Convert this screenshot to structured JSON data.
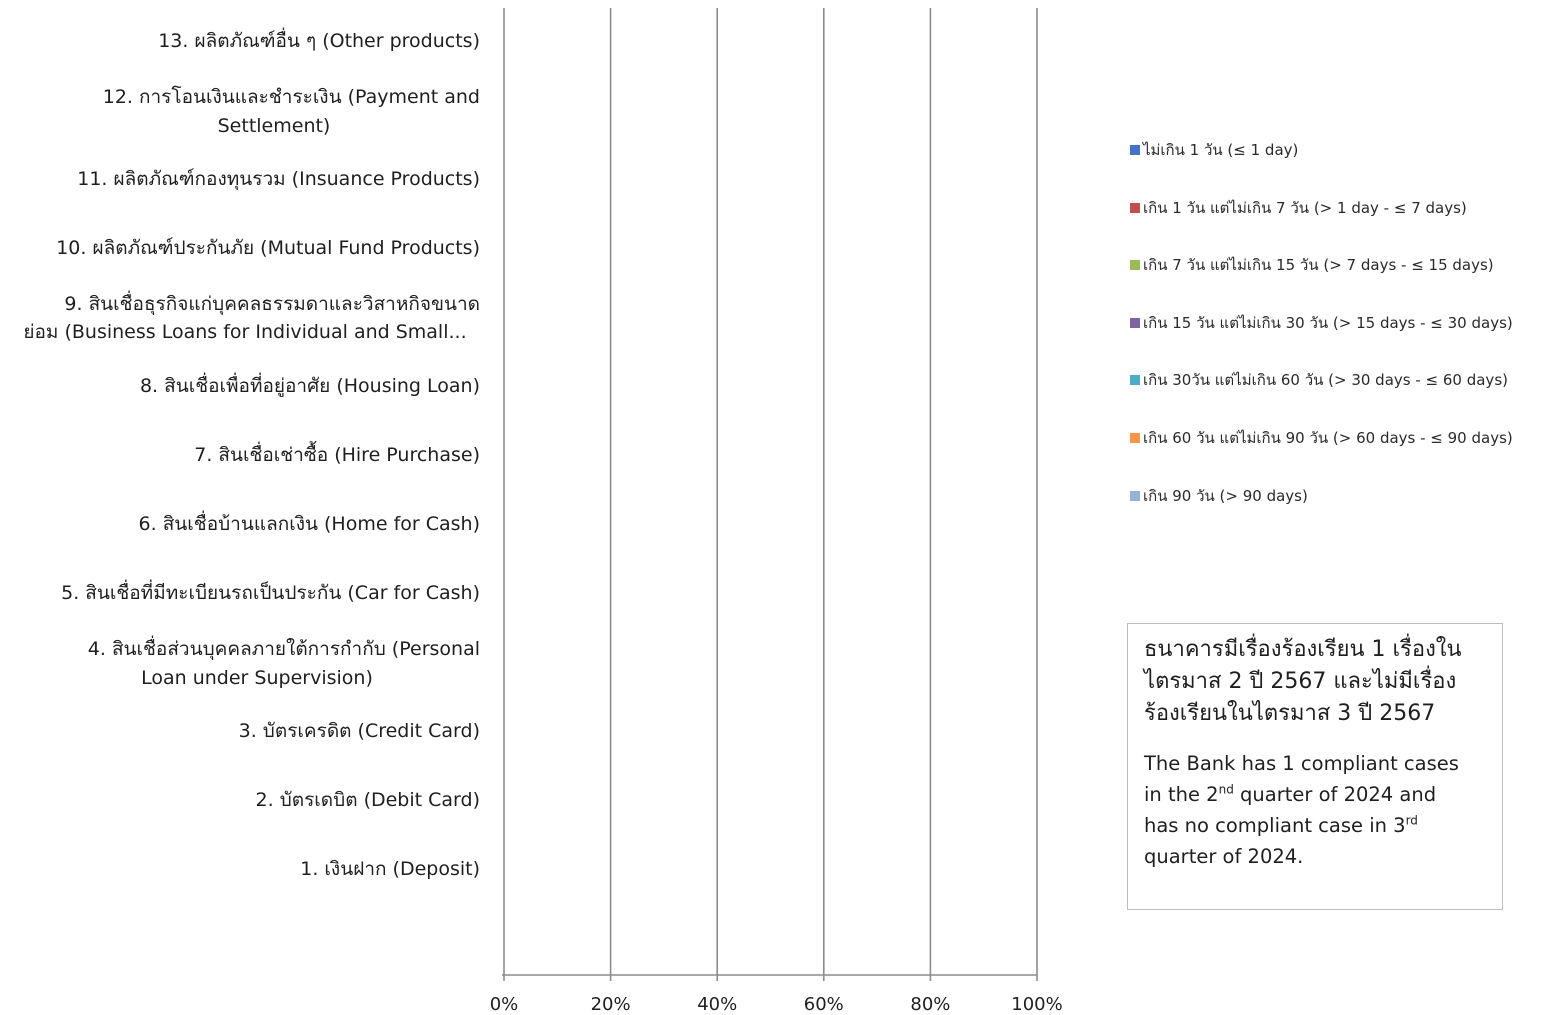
{
  "chart_data": {
    "type": "bar",
    "orientation": "horizontal",
    "stacked": true,
    "percent": true,
    "categories": [
      [
        "13. ผลิตภัณฑ์อื่น ๆ (Other products)"
      ],
      [
        "12. การโอนเงินและชำระเงิน (Payment and",
        "Settlement)"
      ],
      [
        "11. ผลิตภัณฑ์กองทุนรวม (Insuance Products)"
      ],
      [
        "10. ผลิตภัณฑ์ประกันภัย (Mutual Fund Products)"
      ],
      [
        "9. สินเชื่อธุรกิจแก่บุคคลธรรมดาและวิสาหกิจขนาด",
        "ย่อม (Business Loans for Individual and Small..."
      ],
      [
        "8. สินเชื่อเพื่อที่อยู่อาศัย (Housing Loan)"
      ],
      [
        "7. สินเชื่อเช่าซื้อ (Hire Purchase)"
      ],
      [
        "6. สินเชื่อบ้านแลกเงิน (Home for Cash)"
      ],
      [
        "5. สินเชื่อที่มีทะเบียนรถเป็นประกัน (Car for Cash)"
      ],
      [
        "4. สินเชื่อส่วนบุคคลภายใต้การกำกับ (Personal",
        "Loan under Supervision)"
      ],
      [
        "3. บัตรเครดิต (Credit Card)"
      ],
      [
        "2. บัตรเดบิต (Debit Card)"
      ],
      [
        "1. เงินฝาก (Deposit)"
      ]
    ],
    "series": [
      {
        "name": "ไม่เกิน 1 วัน (≤ 1 day)",
        "color": "#4472c4",
        "values": [
          0,
          0,
          0,
          0,
          0,
          0,
          0,
          0,
          0,
          0,
          0,
          0,
          0
        ]
      },
      {
        "name": "เกิน 1 วัน แต่ไม่เกิน 7 วัน (> 1 day - ≤ 7 days)",
        "color": "#c0504d",
        "values": [
          0,
          0,
          0,
          0,
          0,
          0,
          0,
          0,
          0,
          0,
          0,
          0,
          0
        ]
      },
      {
        "name": "เกิน 7 วัน แต่ไม่เกิน 15 วัน (> 7 days - ≤ 15 days)",
        "color": "#9bbb59",
        "values": [
          0,
          0,
          0,
          0,
          0,
          0,
          0,
          0,
          0,
          0,
          0,
          0,
          0
        ]
      },
      {
        "name": "เกิน 15 วัน แต่ไม่เกิน 30 วัน (> 15 days - ≤ 30 days)",
        "color": "#8064a2",
        "values": [
          0,
          0,
          0,
          0,
          0,
          0,
          0,
          0,
          0,
          0,
          0,
          0,
          0
        ]
      },
      {
        "name": "เกิน 30วัน แต่ไม่เกิน 60 วัน (> 30 days - ≤ 60 days)",
        "color": "#4bacc6",
        "values": [
          0,
          0,
          0,
          0,
          0,
          0,
          0,
          0,
          0,
          0,
          0,
          0,
          0
        ]
      },
      {
        "name": "เกิน 60 วัน แต่ไม่เกิน 90 วัน (> 60 days - ≤ 90 days)",
        "color": "#f79646",
        "values": [
          0,
          0,
          0,
          0,
          0,
          0,
          0,
          0,
          0,
          0,
          0,
          0,
          0
        ]
      },
      {
        "name": "เกิน 90 วัน (> 90 days)",
        "color": "#95b3d7",
        "values": [
          0,
          0,
          0,
          0,
          0,
          0,
          0,
          0,
          0,
          0,
          0,
          0,
          0
        ]
      }
    ],
    "xlim": [
      0,
      100
    ],
    "x_ticks": [
      "0%",
      "20%",
      "40%",
      "60%",
      "80%",
      "100%"
    ],
    "grid": "vertical",
    "legend_position": "right"
  },
  "note": {
    "thai_lines": [
      "ธนาคารมีเรื่องร้องเรียน 1 เรื่องใน",
      "ไตรมาส 2 ปี 2567 และไม่มีเรื่อง",
      "ร้องเรียนในไตรมาส 3 ปี 2567"
    ],
    "en_line1": "The Bank has 1 compliant cases",
    "en_line2_a": "in the 2",
    "en_line2_sup": "nd",
    "en_line2_b": " quarter of 2024 and",
    "en_line3_a": "has no compliant case in 3",
    "en_line3_sup": "rd",
    "en_line4": "quarter of 2024."
  }
}
